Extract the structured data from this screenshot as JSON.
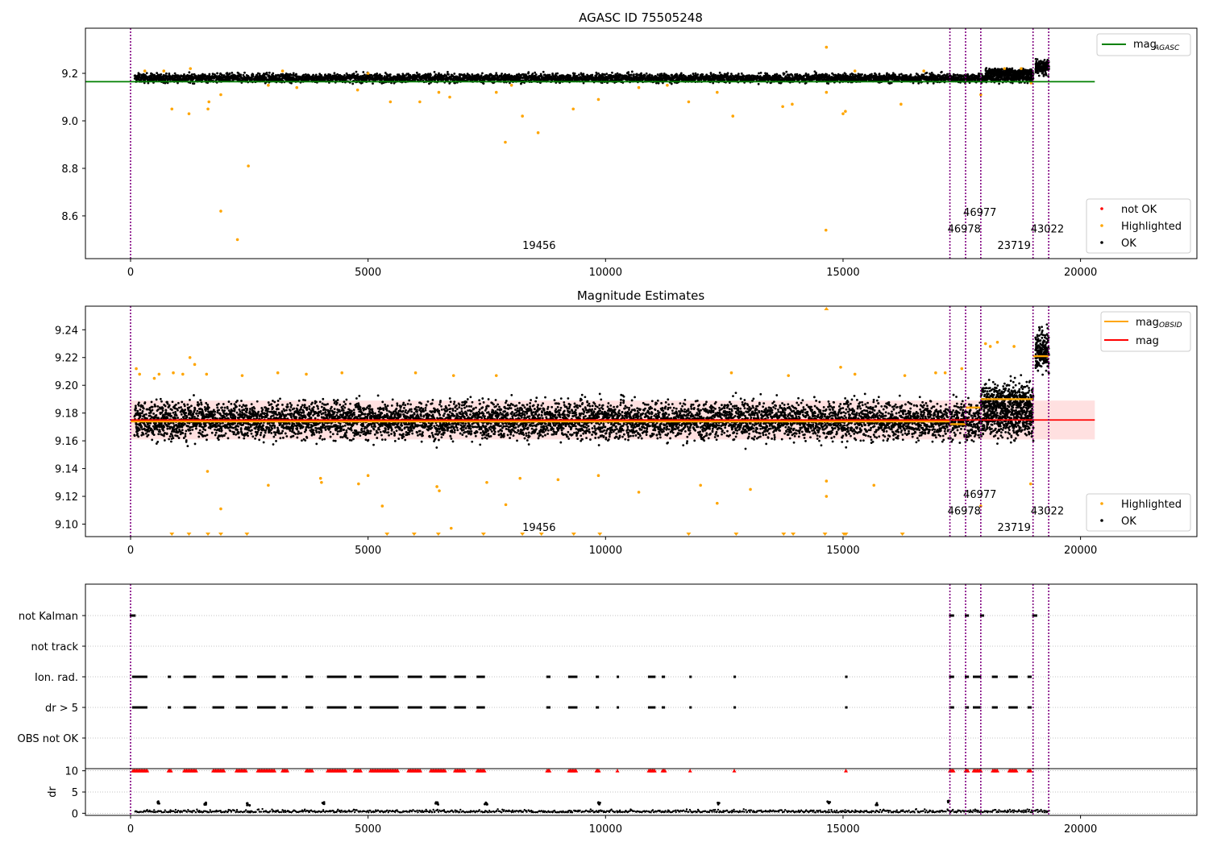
{
  "chart_data": [
    {
      "type": "scatter",
      "title": "AGASC ID 75505248",
      "xlim": [
        -950,
        22450
      ],
      "ylim": [
        8.42,
        9.39
      ],
      "xticks": [
        0,
        5000,
        10000,
        15000,
        20000
      ],
      "yticks": [
        8.6,
        8.8,
        9.0,
        9.2
      ],
      "ytick_labels": [
        "8.6",
        "8.8",
        "9.0",
        "9.2"
      ],
      "ok_band": {
        "x_range": [
          80,
          19000
        ],
        "center": 9.18,
        "spread": 0.018
      },
      "jump_band": {
        "x_range": [
          18000,
          19000
        ],
        "center": 9.205,
        "spread": 0.015
      },
      "last_cluster": {
        "x_range": [
          19050,
          19330
        ],
        "center": 9.225,
        "spread": 0.03
      },
      "mag_agasc": {
        "x": [
          -950,
          20300
        ],
        "y": 9.165
      },
      "highlighted_points": [
        [
          2250,
          8.5
        ],
        [
          1900,
          8.62
        ],
        [
          2480,
          8.81
        ],
        [
          7890,
          8.91
        ],
        [
          8580,
          8.95
        ],
        [
          8250,
          9.02
        ],
        [
          870,
          9.05
        ],
        [
          1230,
          9.03
        ],
        [
          1630,
          9.05
        ],
        [
          1650,
          9.08
        ],
        [
          1900,
          9.11
        ],
        [
          5470,
          9.08
        ],
        [
          6090,
          9.08
        ],
        [
          6720,
          9.1
        ],
        [
          7700,
          9.12
        ],
        [
          9320,
          9.05
        ],
        [
          9850,
          9.09
        ],
        [
          11750,
          9.08
        ],
        [
          12680,
          9.02
        ],
        [
          13730,
          9.06
        ],
        [
          13930,
          9.07
        ],
        [
          14650,
          9.31
        ],
        [
          14640,
          8.54
        ],
        [
          15000,
          9.03
        ],
        [
          15050,
          9.04
        ],
        [
          16220,
          9.07
        ],
        [
          12350,
          9.12
        ],
        [
          4780,
          9.13
        ],
        [
          6490,
          9.12
        ],
        [
          8020,
          9.15
        ],
        [
          300,
          9.21
        ],
        [
          700,
          9.21
        ],
        [
          1260,
          9.22
        ],
        [
          3200,
          9.21
        ],
        [
          5000,
          9.2
        ],
        [
          15250,
          9.21
        ],
        [
          16700,
          9.21
        ],
        [
          18400,
          9.22
        ],
        [
          18750,
          9.22
        ],
        [
          14650,
          9.12
        ],
        [
          17900,
          9.11
        ],
        [
          3500,
          9.14
        ],
        [
          10700,
          9.14
        ],
        [
          11300,
          9.15
        ],
        [
          2900,
          9.15
        ],
        [
          18960,
          9.16
        ]
      ],
      "vlines": [
        0,
        17250,
        17580,
        17900,
        19000,
        19330
      ],
      "annotations": [
        {
          "text": "19456",
          "x": 8250,
          "y": 8.46
        },
        {
          "text": "46978",
          "x": 17200,
          "y": 8.53
        },
        {
          "text": "46977",
          "x": 17530,
          "y": 8.6
        },
        {
          "text": "23719",
          "x": 18250,
          "y": 8.46
        },
        {
          "text": "43022",
          "x": 18950,
          "y": 8.53
        }
      ],
      "legend": {
        "placement": "right",
        "entries": [
          "mag",
          "AGASC",
          "not OK",
          "Highlighted",
          "OK"
        ]
      },
      "colors": {
        "ok": "#000000",
        "highlighted": "#ffa500",
        "not_ok": "#ff0000",
        "mag_agasc": "#008000",
        "vline": "#800080"
      }
    },
    {
      "type": "scatter",
      "title": "Magnitude Estimates",
      "xlim": [
        -950,
        22450
      ],
      "ylim": [
        9.091,
        9.257
      ],
      "xticks": [
        0,
        5000,
        10000,
        15000,
        20000
      ],
      "yticks": [
        9.1,
        9.12,
        9.14,
        9.16,
        9.18,
        9.2,
        9.22,
        9.24
      ],
      "ytick_labels": [
        "9.10",
        "9.12",
        "9.14",
        "9.16",
        "9.18",
        "9.20",
        "9.22",
        "9.24"
      ],
      "ok_band": {
        "x_range": [
          80,
          19000
        ],
        "center": 9.175,
        "spread": 0.013
      },
      "mag": {
        "y": 9.175,
        "x": [
          0,
          20300
        ]
      },
      "mag_band": [
        9.161,
        9.189
      ],
      "mag_obsid": [
        {
          "x": [
            0,
            17250
          ],
          "y": 9.174
        },
        {
          "x": [
            17250,
            17580
          ],
          "y": 9.172
        },
        {
          "x": [
            17580,
            17900
          ],
          "y": 9.184
        },
        {
          "x": [
            17900,
            19000
          ],
          "y": 9.19
        },
        {
          "x": [
            19000,
            19330
          ],
          "y": 9.221
        }
      ],
      "jump_band": {
        "x_range": [
          17900,
          19000
        ],
        "center": 9.19,
        "spread": 0.012
      },
      "last_cluster": {
        "x_range": [
          19050,
          19330
        ],
        "center": 9.225,
        "spread": 0.015
      },
      "highlighted_points": [
        [
          120,
          9.212
        ],
        [
          190,
          9.208
        ],
        [
          500,
          9.205
        ],
        [
          600,
          9.208
        ],
        [
          900,
          9.209
        ],
        [
          1100,
          9.208
        ],
        [
          1250,
          9.22
        ],
        [
          1350,
          9.215
        ],
        [
          1600,
          9.208
        ],
        [
          1620,
          9.138
        ],
        [
          1900,
          9.111
        ],
        [
          2350,
          9.207
        ],
        [
          2900,
          9.128
        ],
        [
          3100,
          9.209
        ],
        [
          3700,
          9.208
        ],
        [
          4000,
          9.133
        ],
        [
          4020,
          9.13
        ],
        [
          4450,
          9.209
        ],
        [
          4800,
          9.129
        ],
        [
          5000,
          9.135
        ],
        [
          5300,
          9.113
        ],
        [
          6000,
          9.209
        ],
        [
          6450,
          9.127
        ],
        [
          6500,
          9.124
        ],
        [
          6750,
          9.097
        ],
        [
          6800,
          9.207
        ],
        [
          7500,
          9.13
        ],
        [
          7700,
          9.207
        ],
        [
          7900,
          9.114
        ],
        [
          8200,
          9.133
        ],
        [
          9000,
          9.132
        ],
        [
          9850,
          9.135
        ],
        [
          10700,
          9.123
        ],
        [
          12000,
          9.128
        ],
        [
          12350,
          9.115
        ],
        [
          12650,
          9.209
        ],
        [
          13050,
          9.125
        ],
        [
          13850,
          9.207
        ],
        [
          14650,
          9.131
        ],
        [
          14650,
          9.12
        ],
        [
          14950,
          9.213
        ],
        [
          15250,
          9.208
        ],
        [
          15650,
          9.128
        ],
        [
          16300,
          9.207
        ],
        [
          16950,
          9.209
        ],
        [
          17150,
          9.209
        ],
        [
          17500,
          9.212
        ],
        [
          18000,
          9.23
        ],
        [
          18100,
          9.228
        ],
        [
          18250,
          9.231
        ],
        [
          18600,
          9.228
        ],
        [
          17900,
          9.113
        ],
        [
          18950,
          9.129
        ]
      ],
      "clipped_points": [
        870,
        1230,
        1630,
        1900,
        2450,
        5400,
        5970,
        6480,
        7430,
        8250,
        8650,
        9330,
        9880,
        11750,
        12750,
        13750,
        13950,
        14620,
        15020,
        15060,
        16250
      ],
      "top_clipped": [
        14650
      ],
      "vlines": [
        0,
        17250,
        17580,
        17900,
        19000,
        19330
      ],
      "annotations": [
        {
          "text": "19456",
          "x": 8250,
          "y": 9.095
        },
        {
          "text": "46978",
          "x": 17200,
          "y": 9.107
        },
        {
          "text": "46977",
          "x": 17530,
          "y": 9.119
        },
        {
          "text": "23719",
          "x": 18250,
          "y": 9.095
        },
        {
          "text": "43022",
          "x": 18950,
          "y": 9.107
        }
      ],
      "legend": {
        "placement": "right",
        "entries": [
          "mag",
          "OBSID",
          "mag",
          "Highlighted",
          "OK"
        ]
      },
      "colors": {
        "ok": "#000000",
        "highlighted": "#ffa500",
        "mag": "#ff0000",
        "mag_band": "rgba(255,0,0,0.12)",
        "mag_obsid": "#ffa500",
        "vline": "#800080"
      }
    },
    {
      "type": "scatter",
      "title": "",
      "xlim": [
        -950,
        22450
      ],
      "ylim": [
        -0.5,
        10.5
      ],
      "xticks": [
        0,
        5000,
        10000,
        15000,
        20000
      ],
      "yticks": [
        0,
        5,
        10
      ],
      "ytick_labels": [
        "0",
        "5",
        "10"
      ],
      "ylabel": "dr",
      "flag_rows": [
        "not Kalman",
        "not track",
        "Ion. rad.",
        "dr > 5",
        "OBS not OK"
      ],
      "flag_marks": {
        "not Kalman": [
          [
            0,
            100
          ],
          [
            17250,
            17330
          ],
          [
            17580,
            17650
          ],
          [
            17900,
            17970
          ],
          [
            19000,
            19080
          ]
        ],
        "not track": [],
        "Ion. rad.": [
          [
            50,
            350
          ],
          [
            800,
            850
          ],
          [
            1130,
            1380
          ],
          [
            1740,
            1970
          ],
          [
            2230,
            2450
          ],
          [
            2680,
            3050
          ],
          [
            3200,
            3300
          ],
          [
            3700,
            3830
          ],
          [
            4150,
            4530
          ],
          [
            4720,
            4850
          ],
          [
            5050,
            5640
          ],
          [
            5850,
            6120
          ],
          [
            6320,
            6640
          ],
          [
            6830,
            7050
          ],
          [
            7300,
            7450
          ],
          [
            8770,
            8830
          ],
          [
            9230,
            9400
          ],
          [
            9810,
            9860
          ],
          [
            10250,
            10270
          ],
          [
            10910,
            11050
          ],
          [
            11200,
            11250
          ],
          [
            11780,
            11800
          ],
          [
            12710,
            12730
          ],
          [
            15060,
            15080
          ],
          [
            17250,
            17330
          ],
          [
            17580,
            17650
          ],
          [
            17750,
            17900
          ],
          [
            18150,
            18250
          ],
          [
            18500,
            18670
          ],
          [
            18900,
            18970
          ]
        ],
        "dr > 5": [
          [
            50,
            350
          ],
          [
            800,
            850
          ],
          [
            1130,
            1380
          ],
          [
            1740,
            1970
          ],
          [
            2230,
            2450
          ],
          [
            2680,
            3050
          ],
          [
            3200,
            3300
          ],
          [
            3700,
            3830
          ],
          [
            4150,
            4530
          ],
          [
            4720,
            4850
          ],
          [
            5050,
            5640
          ],
          [
            5850,
            6120
          ],
          [
            6320,
            6640
          ],
          [
            6830,
            7050
          ],
          [
            7300,
            7450
          ],
          [
            8770,
            8830
          ],
          [
            9230,
            9400
          ],
          [
            9810,
            9860
          ],
          [
            10250,
            10270
          ],
          [
            10910,
            11050
          ],
          [
            11200,
            11250
          ],
          [
            11780,
            11800
          ],
          [
            12710,
            12730
          ],
          [
            15060,
            15080
          ],
          [
            17250,
            17330
          ],
          [
            17580,
            17650
          ],
          [
            17750,
            17900
          ],
          [
            18150,
            18250
          ],
          [
            18500,
            18670
          ],
          [
            18900,
            18970
          ]
        ],
        "OBS not OK": []
      },
      "dr_high_points": [
        [
          50,
          350
        ],
        [
          800,
          850
        ],
        [
          1130,
          1380
        ],
        [
          1740,
          1970
        ],
        [
          2230,
          2450
        ],
        [
          2680,
          3050
        ],
        [
          3200,
          3300
        ],
        [
          3700,
          3830
        ],
        [
          4150,
          4530
        ],
        [
          4720,
          4850
        ],
        [
          5050,
          5640
        ],
        [
          5850,
          6120
        ],
        [
          6320,
          6640
        ],
        [
          6830,
          7050
        ],
        [
          7300,
          7450
        ],
        [
          8770,
          8830
        ],
        [
          9230,
          9400
        ],
        [
          9810,
          9860
        ],
        [
          10250,
          10270
        ],
        [
          10910,
          11050
        ],
        [
          11200,
          11250
        ],
        [
          11780,
          11800
        ],
        [
          12710,
          12730
        ],
        [
          15060,
          15080
        ],
        [
          17250,
          17330
        ],
        [
          17580,
          17650
        ],
        [
          17750,
          17900
        ],
        [
          18150,
          18250
        ],
        [
          18500,
          18670
        ],
        [
          18900,
          18970
        ]
      ],
      "dr_bumps": [
        [
          580,
          2.8
        ],
        [
          1580,
          2.6
        ],
        [
          2480,
          2.4
        ],
        [
          4050,
          2.7
        ],
        [
          6450,
          2.6
        ],
        [
          7480,
          2.5
        ],
        [
          9870,
          2.6
        ],
        [
          12380,
          2.5
        ],
        [
          14700,
          2.9
        ],
        [
          15720,
          2.5
        ],
        [
          17230,
          3.0
        ]
      ],
      "vlines": [
        0,
        17250,
        17580,
        17900,
        19000,
        19330
      ],
      "colors": {
        "ok": "#000000",
        "not_ok": "#ff0000",
        "vline": "#800080",
        "grid": "#b0b0b0"
      }
    }
  ]
}
